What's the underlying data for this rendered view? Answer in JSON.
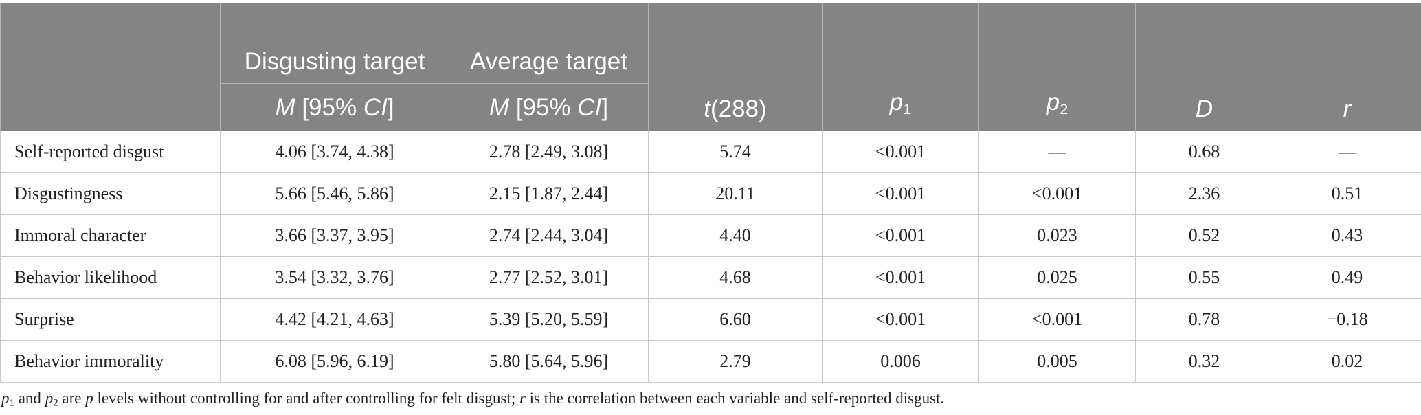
{
  "headers": {
    "disgusting_target": "Disgusting target",
    "average_target": "Average target",
    "m_label": "M",
    "ci_label": " [95% ",
    "ci_italic": "CI",
    "ci_close": "]",
    "t_symbol": "t",
    "t_df": "(288)",
    "p_symbol": "p",
    "p1_sub": "1",
    "p2_sub": "2",
    "d_label": "D",
    "r_label": "r"
  },
  "rows": [
    {
      "label": "Self-reported disgust",
      "disgusting": "4.06 [3.74, 4.38]",
      "average": "2.78 [2.49, 3.08]",
      "t": "5.74",
      "p1": "<0.001",
      "p2": "—",
      "d": "0.68",
      "r": "—"
    },
    {
      "label": "Disgustingness",
      "disgusting": "5.66 [5.46, 5.86]",
      "average": "2.15 [1.87, 2.44]",
      "t": "20.11",
      "p1": "<0.001",
      "p2": "<0.001",
      "d": "2.36",
      "r": "0.51"
    },
    {
      "label": "Immoral character",
      "disgusting": "3.66 [3.37, 3.95]",
      "average": "2.74 [2.44, 3.04]",
      "t": "4.40",
      "p1": "<0.001",
      "p2": "0.023",
      "d": "0.52",
      "r": "0.43"
    },
    {
      "label": "Behavior likelihood",
      "disgusting": "3.54 [3.32, 3.76]",
      "average": "2.77 [2.52, 3.01]",
      "t": "4.68",
      "p1": "<0.001",
      "p2": "0.025",
      "d": "0.55",
      "r": "0.49"
    },
    {
      "label": "Surprise",
      "disgusting": "4.42 [4.21, 4.63]",
      "average": "5.39 [5.20, 5.59]",
      "t": "6.60",
      "p1": "<0.001",
      "p2": "<0.001",
      "d": "0.78",
      "r": "−0.18"
    },
    {
      "label": "Behavior immorality",
      "disgusting": "6.08 [5.96, 6.19]",
      "average": "5.80 [5.64, 5.96]",
      "t": "2.79",
      "p1": "0.006",
      "p2": "0.005",
      "d": "0.32",
      "r": "0.02"
    }
  ],
  "footnote": {
    "p": "p",
    "sub1": "1",
    "and": " and ",
    "sub2": "2",
    "are": " are ",
    "p_levels": "p",
    "mid": " levels without controlling for and after controlling for felt disgust; ",
    "r": "r",
    "end": " is the correlation between each variable and self-reported disgust."
  },
  "colors": {
    "header_bg": "#848484",
    "header_text": "#ffffff",
    "body_text": "#222222",
    "grid": "#c9c9c9"
  }
}
